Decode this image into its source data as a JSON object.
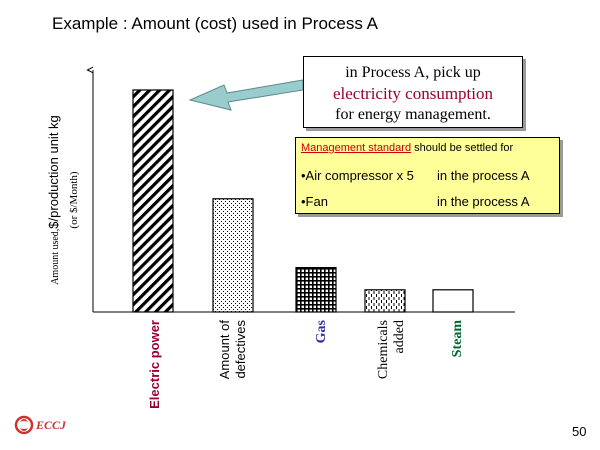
{
  "slide": {
    "title": "Example : Amount (cost) used in Process A",
    "page_number": "50",
    "logo_text": "ECCJ"
  },
  "chart_data": {
    "type": "bar",
    "title": "Example : Amount (cost) used in Process A",
    "ylabel_line1_main": "Amount used,",
    "ylabel_line1_rest": "$/production unit kg",
    "ylabel_line2": "(or $/Month)",
    "xlabel": "",
    "ylim": [
      0,
      100
    ],
    "categories": [
      {
        "id": "electric",
        "lines": [
          "Electric power"
        ],
        "color": "#990033",
        "bold": true,
        "fill": "diagonal",
        "value": 100
      },
      {
        "id": "defectives",
        "lines": [
          "Amount of",
          "defectives"
        ],
        "color": "#000000",
        "bold": false,
        "fill": "dots",
        "value": 51
      },
      {
        "id": "gas",
        "lines": [
          "Gas"
        ],
        "color": "#333399",
        "bold": true,
        "fill": "grid",
        "value": 20
      },
      {
        "id": "chemicals",
        "lines": [
          "Chemicals",
          "added"
        ],
        "color": "#000000",
        "bold": false,
        "fill": "dashes",
        "value": 10
      },
      {
        "id": "steam",
        "lines": [
          "Steam"
        ],
        "color": "#006633",
        "bold": true,
        "fill": "none",
        "value": 10
      }
    ]
  },
  "callout": {
    "line1": "in Process A, pick up",
    "line2": "electricity consumption",
    "line3": "for energy management."
  },
  "management": {
    "heading_underlined": "Management standard",
    "heading_rest": " should be settled for",
    "rows": [
      {
        "item": "•Air compressor  x 5",
        "location": "in the process A"
      },
      {
        "item": "•Fan",
        "location": "in the process A"
      }
    ]
  },
  "colors": {
    "electric": "#990033",
    "gas": "#333399",
    "steam": "#006633",
    "arrow_fill": "#99cccc",
    "note_fill": "#ffff99"
  }
}
